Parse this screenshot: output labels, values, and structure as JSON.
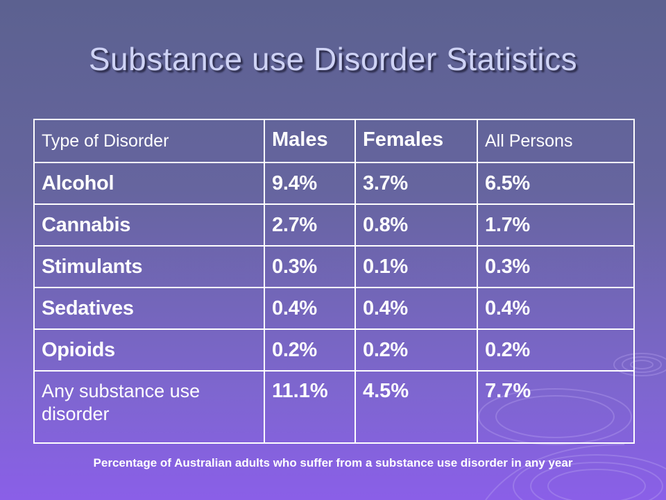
{
  "slide": {
    "title": "Substance use Disorder Statistics",
    "caption": "Percentage of Australian adults who suffer from a substance use disorder in any year"
  },
  "table": {
    "headers": [
      "Type of Disorder",
      "Males",
      "Females",
      "All Persons"
    ],
    "rows": [
      {
        "type": "Alcohol",
        "males": "9.4%",
        "females": "3.7%",
        "all": "6.5%"
      },
      {
        "type": "Cannabis",
        "males": "2.7%",
        "females": "0.8%",
        "all": "1.7%"
      },
      {
        "type": "Stimulants",
        "males": "0.3%",
        "females": "0.1%",
        "all": "0.3%"
      },
      {
        "type": "Sedatives",
        "males": "0.4%",
        "females": "0.4%",
        "all": "0.4%"
      },
      {
        "type": "Opioids",
        "males": "0.2%",
        "females": "0.2%",
        "all": "0.2%"
      },
      {
        "type": "Any substance use disorder",
        "males": "11.1%",
        "females": "4.5%",
        "all": "7.7%"
      }
    ]
  },
  "colors": {
    "background_top": "#5c6190",
    "background_bottom": "#8a5fe8",
    "title": "#cfd3f5",
    "table_text": "#ffffff",
    "table_border": "#ffffff"
  }
}
